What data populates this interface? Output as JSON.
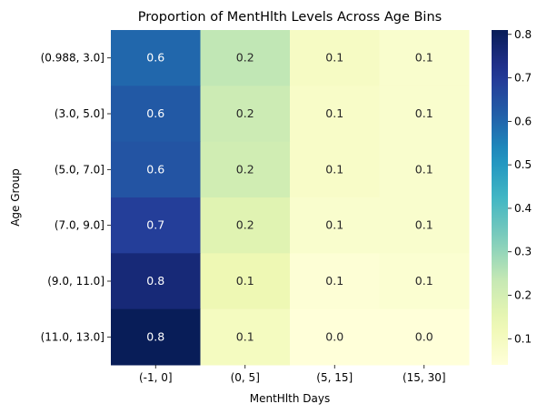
{
  "chart_data": {
    "type": "heatmap",
    "title": "Proportion of MentHlth Levels Across Age Bins",
    "xlabel": "MentHlth Days",
    "ylabel": "Age Group",
    "x_categories": [
      "(-1, 0]",
      "(0, 5]",
      "(5, 15]",
      "(15, 30]"
    ],
    "y_categories": [
      "(0.988, 3.0]",
      "(3.0, 5.0]",
      "(5.0, 7.0]",
      "(7.0, 9.0]",
      "(9.0, 11.0]",
      "(11.0, 13.0]"
    ],
    "values": [
      [
        0.6,
        0.24,
        0.09,
        0.07
      ],
      [
        0.63,
        0.22,
        0.08,
        0.07
      ],
      [
        0.64,
        0.21,
        0.08,
        0.07
      ],
      [
        0.69,
        0.17,
        0.07,
        0.07
      ],
      [
        0.76,
        0.13,
        0.05,
        0.06
      ],
      [
        0.81,
        0.1,
        0.04,
        0.04
      ]
    ],
    "cell_labels": [
      [
        "0.6",
        "0.2",
        "0.1",
        "0.1"
      ],
      [
        "0.6",
        "0.2",
        "0.1",
        "0.1"
      ],
      [
        "0.6",
        "0.2",
        "0.1",
        "0.1"
      ],
      [
        "0.7",
        "0.2",
        "0.1",
        "0.1"
      ],
      [
        "0.8",
        "0.1",
        "0.1",
        "0.1"
      ],
      [
        "0.8",
        "0.1",
        "0.0",
        "0.0"
      ]
    ],
    "colorbar": {
      "colormap": "YlGnBu",
      "min": 0.04,
      "max": 0.81,
      "ticks": [
        0.1,
        0.2,
        0.3,
        0.4,
        0.5,
        0.6,
        0.7,
        0.8
      ],
      "tick_labels": [
        "0.1",
        "0.2",
        "0.3",
        "0.4",
        "0.5",
        "0.6",
        "0.7",
        "0.8"
      ]
    }
  }
}
